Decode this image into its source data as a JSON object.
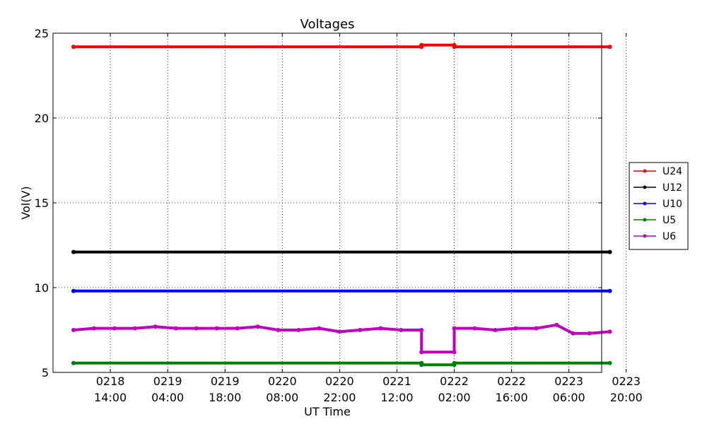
{
  "chart_data": {
    "type": "line",
    "title": "Voltages",
    "xlabel": "UT Time",
    "ylabel": "Vol(V)",
    "ylim": [
      5,
      25
    ],
    "yticks": [
      5,
      10,
      15,
      20,
      25
    ],
    "xlim_hours": [
      0,
      134
    ],
    "xticks": [
      {
        "hour": 14,
        "line1": "0218",
        "line2": "14:00"
      },
      {
        "hour": 28,
        "line1": "0219",
        "line2": "04:00"
      },
      {
        "hour": 42,
        "line1": "0219",
        "line2": "18:00"
      },
      {
        "hour": 56,
        "line1": "0220",
        "line2": "08:00"
      },
      {
        "hour": 70,
        "line1": "0220",
        "line2": "22:00"
      },
      {
        "hour": 84,
        "line1": "0221",
        "line2": "12:00"
      },
      {
        "hour": 98,
        "line1": "0222",
        "line2": "02:00"
      },
      {
        "hour": 112,
        "line1": "0222",
        "line2": "16:00"
      },
      {
        "hour": 126,
        "line1": "0223",
        "line2": "06:00"
      },
      {
        "hour": 140,
        "line1": "0223",
        "line2": "20:00"
      }
    ],
    "grid": true,
    "legend_position": "right",
    "series": [
      {
        "name": "U24",
        "color": "#ff0000",
        "x": [
          5,
          90,
          90,
          98,
          98,
          136
        ],
        "values": [
          24.2,
          24.2,
          24.3,
          24.3,
          24.2,
          24.2
        ]
      },
      {
        "name": "U12",
        "color": "#000000",
        "x": [
          5,
          136
        ],
        "values": [
          12.1,
          12.1
        ]
      },
      {
        "name": "U10",
        "color": "#0000ff",
        "x": [
          5,
          136
        ],
        "values": [
          9.8,
          9.8
        ]
      },
      {
        "name": "U5",
        "color": "#008000",
        "x": [
          5,
          90,
          90,
          98,
          98,
          136
        ],
        "values": [
          5.55,
          5.55,
          5.45,
          5.45,
          5.55,
          5.55
        ]
      },
      {
        "name": "U6",
        "color": "#bf00bf",
        "x": [
          5,
          10,
          15,
          20,
          25,
          30,
          35,
          40,
          45,
          50,
          55,
          60,
          65,
          70,
          75,
          80,
          85,
          90,
          90,
          98,
          98,
          103,
          108,
          113,
          118,
          123,
          127,
          131,
          136
        ],
        "values": [
          7.5,
          7.6,
          7.6,
          7.6,
          7.7,
          7.6,
          7.6,
          7.6,
          7.6,
          7.7,
          7.5,
          7.5,
          7.6,
          7.4,
          7.5,
          7.6,
          7.5,
          7.5,
          6.2,
          6.2,
          7.6,
          7.6,
          7.5,
          7.6,
          7.6,
          7.8,
          7.3,
          7.3,
          7.4
        ]
      }
    ]
  }
}
